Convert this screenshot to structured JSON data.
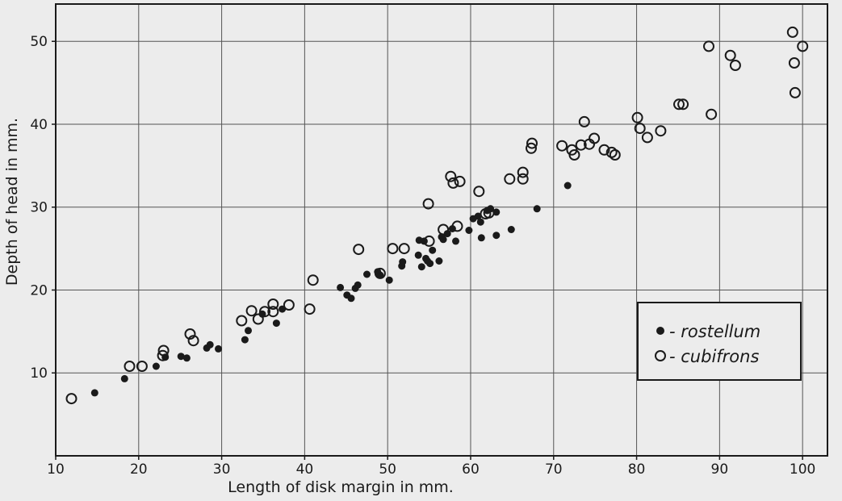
{
  "chart_data": {
    "type": "scatter",
    "title": "",
    "xlabel": "Length of disk margin in mm.",
    "ylabel": "Depth of head in mm.",
    "xlim": [
      10,
      103
    ],
    "ylim": [
      0,
      54.5
    ],
    "xticks": [
      10,
      20,
      30,
      40,
      50,
      60,
      70,
      80,
      90,
      100
    ],
    "yticks": [
      10,
      20,
      30,
      40,
      50
    ],
    "grid": true,
    "legend": {
      "position": "bottom-right",
      "entries": [
        {
          "marker": "filled-circle",
          "label": "- rostellum"
        },
        {
          "marker": "open-circle",
          "label": "- cubifrons"
        }
      ]
    },
    "series": [
      {
        "name": "rostellum",
        "marker": "filled-circle",
        "points": [
          [
            14.7,
            7.6
          ],
          [
            18.3,
            9.3
          ],
          [
            22.1,
            10.8
          ],
          [
            23.2,
            11.9
          ],
          [
            25.1,
            12.0
          ],
          [
            25.8,
            11.8
          ],
          [
            28.2,
            13.0
          ],
          [
            28.6,
            13.4
          ],
          [
            29.6,
            12.9
          ],
          [
            32.8,
            14.0
          ],
          [
            33.2,
            15.1
          ],
          [
            34.9,
            17.1
          ],
          [
            36.6,
            16.0
          ],
          [
            37.3,
            17.7
          ],
          [
            44.3,
            20.3
          ],
          [
            45.1,
            19.4
          ],
          [
            45.6,
            19.0
          ],
          [
            46.1,
            20.2
          ],
          [
            46.4,
            20.6
          ],
          [
            47.5,
            21.9
          ],
          [
            48.8,
            22.2
          ],
          [
            49.1,
            21.8
          ],
          [
            50.2,
            21.2
          ],
          [
            51.7,
            22.9
          ],
          [
            51.8,
            23.4
          ],
          [
            53.7,
            24.2
          ],
          [
            53.8,
            26.0
          ],
          [
            54.1,
            22.8
          ],
          [
            54.4,
            25.9
          ],
          [
            54.6,
            23.8
          ],
          [
            54.8,
            23.5
          ],
          [
            55.1,
            23.2
          ],
          [
            55.4,
            24.8
          ],
          [
            56.2,
            23.5
          ],
          [
            56.5,
            26.4
          ],
          [
            56.7,
            26.1
          ],
          [
            57.2,
            26.8
          ],
          [
            57.8,
            27.4
          ],
          [
            58.2,
            25.9
          ],
          [
            59.8,
            27.2
          ],
          [
            60.3,
            28.6
          ],
          [
            60.9,
            28.9
          ],
          [
            61.2,
            28.2
          ],
          [
            61.3,
            26.3
          ],
          [
            62.0,
            29.6
          ],
          [
            62.4,
            29.8
          ],
          [
            63.1,
            29.4
          ],
          [
            63.1,
            26.6
          ],
          [
            64.9,
            27.3
          ],
          [
            68.0,
            29.8
          ],
          [
            71.7,
            32.6
          ]
        ]
      },
      {
        "name": "cubifrons",
        "marker": "open-circle",
        "points": [
          [
            11.9,
            6.9
          ],
          [
            18.9,
            10.8
          ],
          [
            20.4,
            10.8
          ],
          [
            22.9,
            12.1
          ],
          [
            23.0,
            12.7
          ],
          [
            26.2,
            14.7
          ],
          [
            26.6,
            13.9
          ],
          [
            32.4,
            16.3
          ],
          [
            33.6,
            17.5
          ],
          [
            34.4,
            16.5
          ],
          [
            35.2,
            17.4
          ],
          [
            36.2,
            18.3
          ],
          [
            36.2,
            17.4
          ],
          [
            38.1,
            18.2
          ],
          [
            40.6,
            17.7
          ],
          [
            41.0,
            21.2
          ],
          [
            46.5,
            24.9
          ],
          [
            49.1,
            22.0
          ],
          [
            50.6,
            25.0
          ],
          [
            52.0,
            25.0
          ],
          [
            54.9,
            30.4
          ],
          [
            55.0,
            25.9
          ],
          [
            56.7,
            27.3
          ],
          [
            57.6,
            33.7
          ],
          [
            57.9,
            32.9
          ],
          [
            58.4,
            27.7
          ],
          [
            58.7,
            33.1
          ],
          [
            61.0,
            31.9
          ],
          [
            61.8,
            29.2
          ],
          [
            62.2,
            29.3
          ],
          [
            64.7,
            33.4
          ],
          [
            66.3,
            34.2
          ],
          [
            66.3,
            33.4
          ],
          [
            67.3,
            37.1
          ],
          [
            67.4,
            37.7
          ],
          [
            71.0,
            37.4
          ],
          [
            72.2,
            36.9
          ],
          [
            72.5,
            36.3
          ],
          [
            73.3,
            37.5
          ],
          [
            73.7,
            40.3
          ],
          [
            74.3,
            37.6
          ],
          [
            74.9,
            38.3
          ],
          [
            76.1,
            36.9
          ],
          [
            77.0,
            36.6
          ],
          [
            77.4,
            36.3
          ],
          [
            80.1,
            40.8
          ],
          [
            80.4,
            39.5
          ],
          [
            81.3,
            38.4
          ],
          [
            82.9,
            39.2
          ],
          [
            85.1,
            42.4
          ],
          [
            85.6,
            42.4
          ],
          [
            88.7,
            49.4
          ],
          [
            89.0,
            41.2
          ],
          [
            91.3,
            48.3
          ],
          [
            91.9,
            47.1
          ],
          [
            98.8,
            51.1
          ],
          [
            99.0,
            47.4
          ],
          [
            99.1,
            43.8
          ],
          [
            100.0,
            49.4
          ]
        ]
      }
    ]
  }
}
